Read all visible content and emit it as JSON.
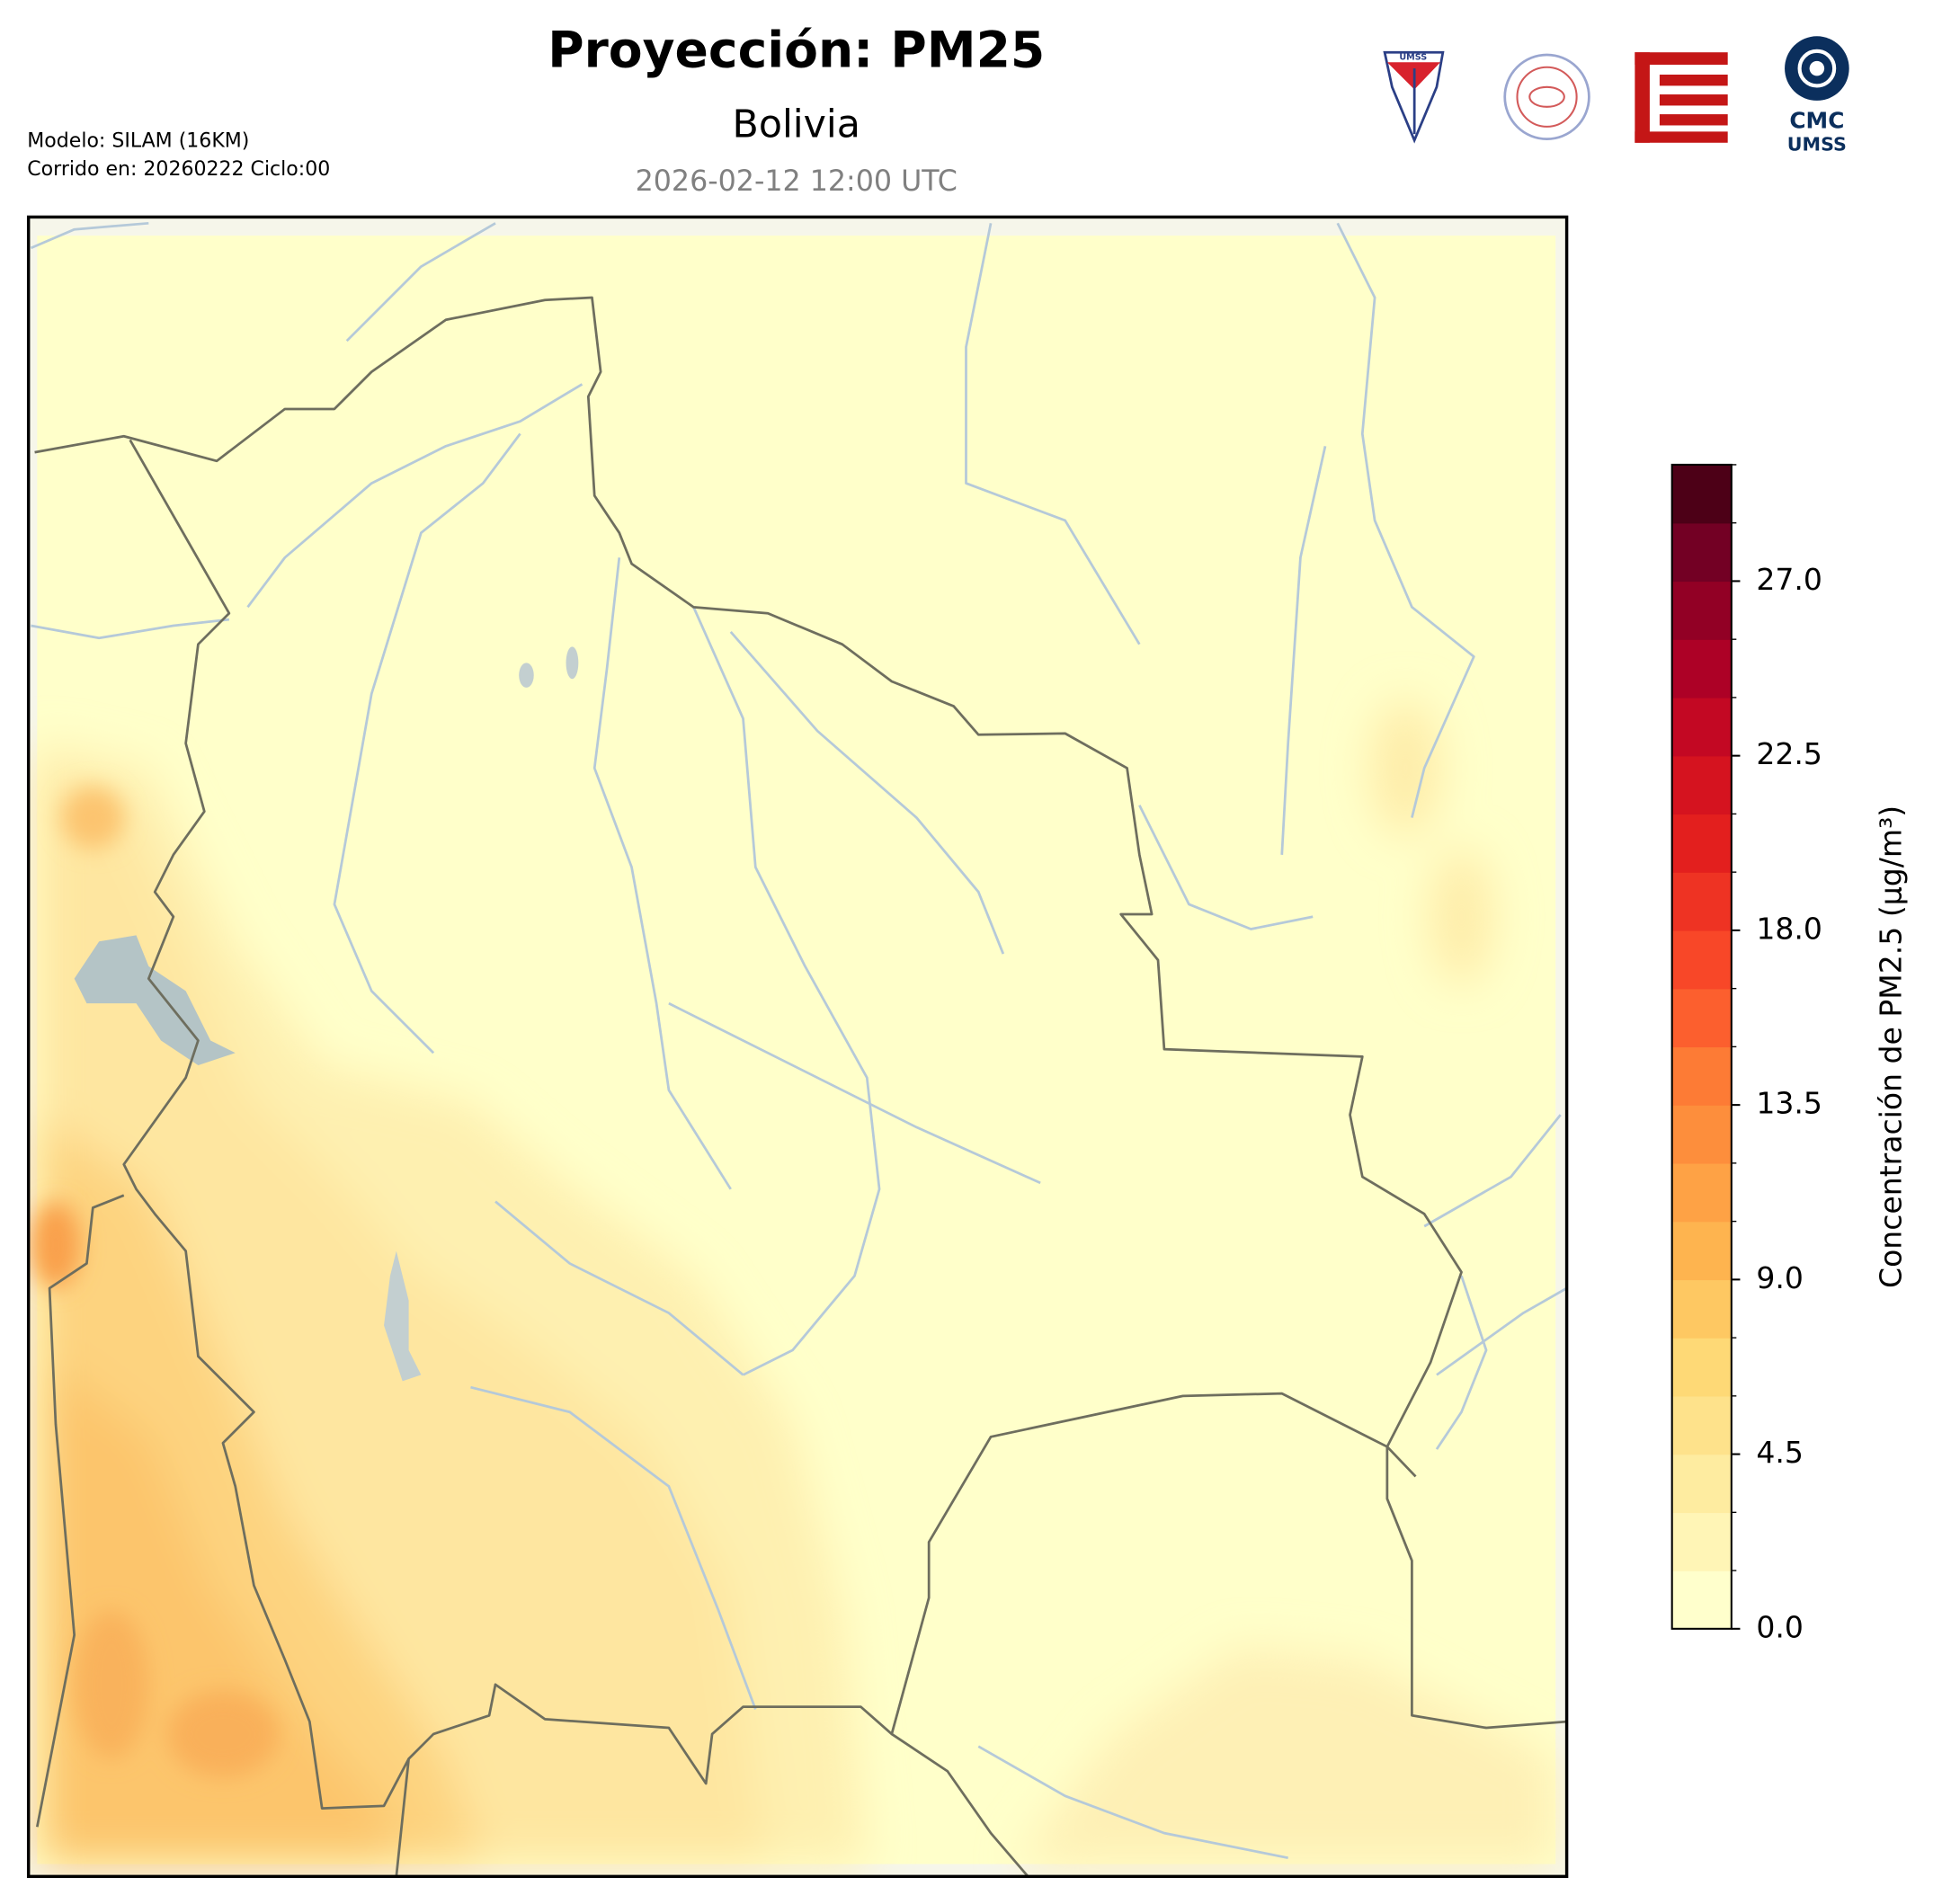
{
  "header": {
    "title": "Proyección: PM25",
    "subtitle": "Bolivia",
    "date": "2026-02-12 12:00 UTC",
    "model": "Modelo: SILAM (16KM)",
    "run": "Corrido en: 20260222 Ciclo:00"
  },
  "logos": {
    "umss": "UMSS",
    "cmc": "CMC",
    "cmc_sub": "UMSS"
  },
  "chart_data": {
    "type": "colorbar",
    "label": "Concentración de PM2.5 (µg/m³)",
    "ylim": [
      0,
      30
    ],
    "yticks": [
      {
        "value": 0,
        "label": "0.0"
      },
      {
        "value": 4.5,
        "label": "4.5"
      },
      {
        "value": 9,
        "label": "9.0"
      },
      {
        "value": 13.5,
        "label": "13.5"
      },
      {
        "value": 18,
        "label": "18.0"
      },
      {
        "value": 22.5,
        "label": "22.5"
      },
      {
        "value": 27,
        "label": "27.0"
      }
    ],
    "levels": [
      0,
      1.5,
      3,
      4.5,
      6,
      7.5,
      9,
      10.5,
      12,
      13.5,
      15,
      16.5,
      18,
      19.5,
      21,
      22.5,
      24,
      25.5,
      27,
      28.5,
      30
    ],
    "colors": [
      "#ffffcc",
      "#fff5b6",
      "#feeca0",
      "#fee28b",
      "#fed976",
      "#fec862",
      "#feb44f",
      "#fea245",
      "#fd8e3c",
      "#fd7b35",
      "#fc5f2e",
      "#f84728",
      "#ee3323",
      "#e31f1e",
      "#d5131f",
      "#c30823",
      "#ad0126",
      "#920025",
      "#730024",
      "#4d0017"
    ]
  }
}
